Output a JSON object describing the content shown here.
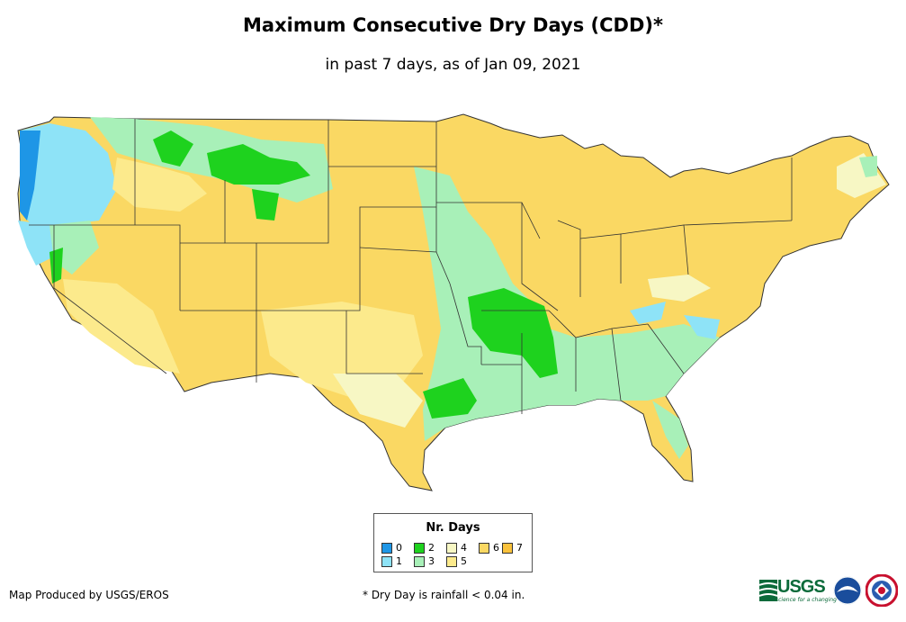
{
  "header": {
    "title": "Maximum Consecutive Dry Days (CDD)*",
    "subtitle": "in past 7 days, as of Jan 09, 2021"
  },
  "legend": {
    "title": "Nr. Days",
    "items": [
      {
        "label": "0",
        "color": "#1e96e6"
      },
      {
        "label": "1",
        "color": "#8ee3f7"
      },
      {
        "label": "2",
        "color": "#1ed21e"
      },
      {
        "label": "3",
        "color": "#a8f0b8"
      },
      {
        "label": "4",
        "color": "#f7f7c4"
      },
      {
        "label": "5",
        "color": "#fcea8c"
      },
      {
        "label": "6",
        "color": "#fad863"
      },
      {
        "label": "7",
        "color": "#fac23c"
      }
    ]
  },
  "footer": {
    "credit": "Map Produced by USGS/EROS",
    "footnote": "* Dry Day is rainfall < 0.04 in.",
    "usgs_logo": "USGS",
    "usgs_tagline": "science for a changing world"
  },
  "logos": [
    "usgs-logo",
    "noaa-logo",
    "national-weather-service-logo"
  ]
}
